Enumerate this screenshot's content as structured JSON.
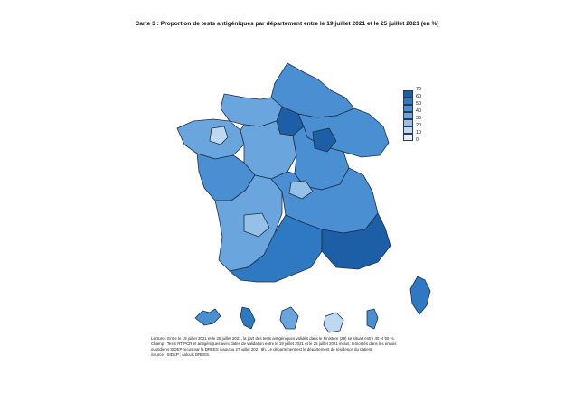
{
  "title": "Carte 3 : Proportion de tests antigéniques par département entre le 19 juillet 2021 et le 25 juillet 2021 (en %)",
  "legend": {
    "breaks": [
      "70",
      "60",
      "50",
      "40",
      "30",
      "20",
      "10",
      "0"
    ],
    "colors": [
      "#1d5fa6",
      "#2f78c2",
      "#4a8fd2",
      "#6aa5dd",
      "#95c0e8",
      "#bfd8f1",
      "#e3eefa"
    ]
  },
  "notes": {
    "lecture": "Lecture : Entre le 19 juillet 2021 et le 25 juillet 2021, la part des tests antigéniques validés dans le Finistère (29) se situait entre 40 et 50 %.",
    "champ": "Champ : Tests RT-PCR et antigéniques avec dates de validation entre le 19 juillet 2021 et le 25 juillet 2021 inclus, remontés dans les envois",
    "champ2": "quotidiens SIDEP reçus par la DREES jusqu'au 27 juillet 2021 9h. Le département est le département de résidence du patient.",
    "source": "Source : SIDEP ; calculs DREES."
  }
}
